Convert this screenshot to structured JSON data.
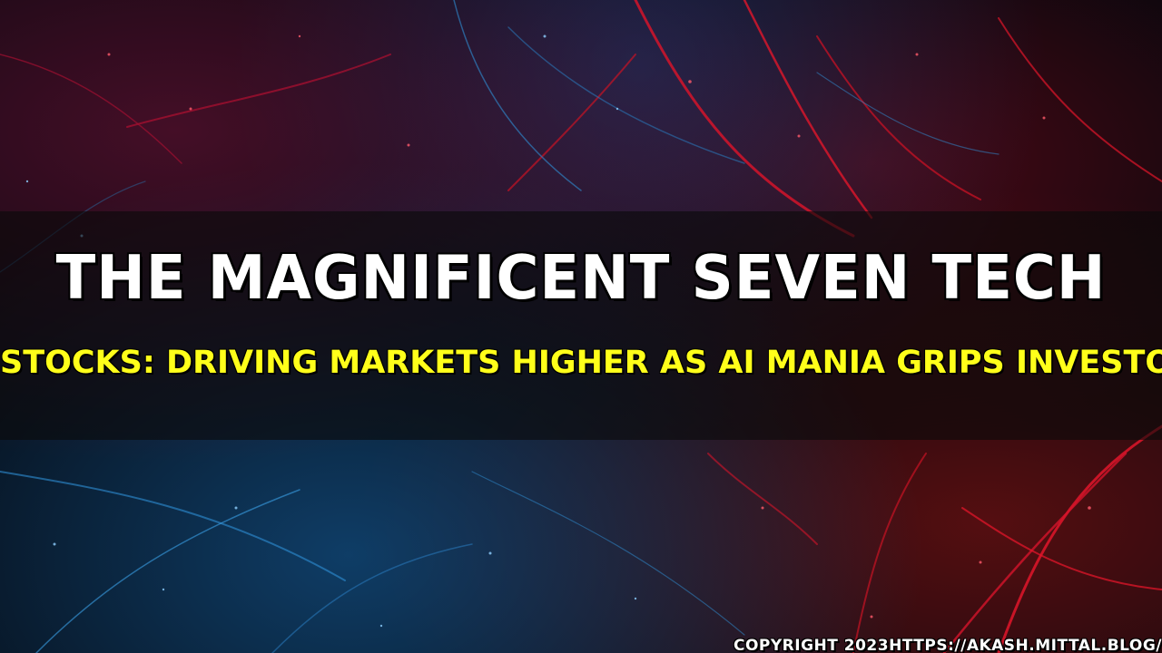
{
  "thumbnail": {
    "title_line1": "THE MAGNIFICENT SEVEN TECH",
    "title_line2": "STOCKS: DRIVING MARKETS HIGHER AS AI MANIA GRIPS INVESTORS",
    "copyright": "COPYRIGHT 2023HTTPS://AKASH.MITTAL.BLOG/"
  },
  "colors": {
    "title_primary": "#ffffff",
    "title_secondary": "#ffff1a",
    "banner_overlay": "rgba(10,10,10,0.62)",
    "fiber_red": "#e0162a",
    "fiber_blue": "#2f8fd6"
  }
}
